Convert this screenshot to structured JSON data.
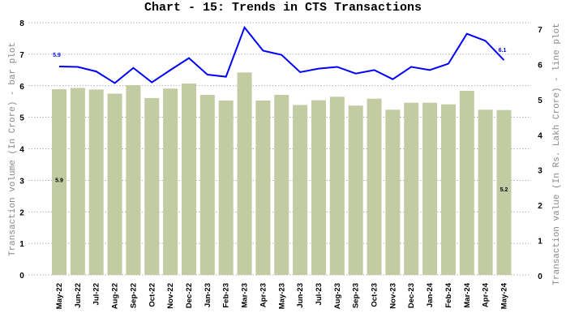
{
  "chart_data": {
    "type": "bar+line",
    "title": "Chart - 15: Trends in CTS Transactions",
    "categories": [
      "May-22",
      "Jun-22",
      "Jul-22",
      "Aug-22",
      "Sep-22",
      "Oct-22",
      "Nov-22",
      "Dec-22",
      "Jan-23",
      "Feb-23",
      "Mar-23",
      "Apr-23",
      "May-23",
      "Jun-23",
      "Jul-23",
      "Aug-23",
      "Sep-23",
      "Oct-23",
      "Nov-23",
      "Dec-23",
      "Jan-24",
      "Feb-24",
      "Mar-24",
      "Apr-24",
      "May-24"
    ],
    "series": [
      {
        "name": "Transaction volume (In Crore) - bar plot",
        "type": "bar",
        "axis": "left",
        "color": "#c2cba1",
        "values": [
          5.89,
          5.93,
          5.88,
          5.75,
          6.02,
          5.61,
          5.91,
          6.07,
          5.71,
          5.53,
          6.42,
          5.53,
          5.71,
          5.39,
          5.54,
          5.65,
          5.37,
          5.59,
          5.24,
          5.46,
          5.46,
          5.41,
          5.84,
          5.24,
          5.23
        ]
      },
      {
        "name": "Transaction value (In Rs. Lakh Crore) - line plot",
        "type": "line",
        "axis": "right",
        "color": "#0000ff",
        "values": [
          5.94,
          5.93,
          5.8,
          5.47,
          5.9,
          5.49,
          5.84,
          6.18,
          5.71,
          5.65,
          7.05,
          6.39,
          6.27,
          5.78,
          5.88,
          5.93,
          5.74,
          5.84,
          5.58,
          5.93,
          5.84,
          6.02,
          6.87,
          6.67,
          6.12
        ]
      }
    ],
    "ylabel": "Transaction volume (In Crore) - bar plot",
    "y2label": "Transaction value (In Rs. Lakh Crore) - line plot",
    "ylim": [
      0,
      8
    ],
    "y2lim": [
      0,
      7
    ],
    "yticks": [
      "0",
      "1",
      "2",
      "3",
      "4",
      "5",
      "6",
      "7",
      "8"
    ],
    "y2ticks": [
      "0",
      "1",
      "2",
      "3",
      "4",
      "5",
      "6",
      "7"
    ],
    "grid": true,
    "data_labels": {
      "bar_first": "5.9",
      "bar_last": "5.2",
      "line_first": "5.9",
      "line_last": "6.1"
    }
  }
}
